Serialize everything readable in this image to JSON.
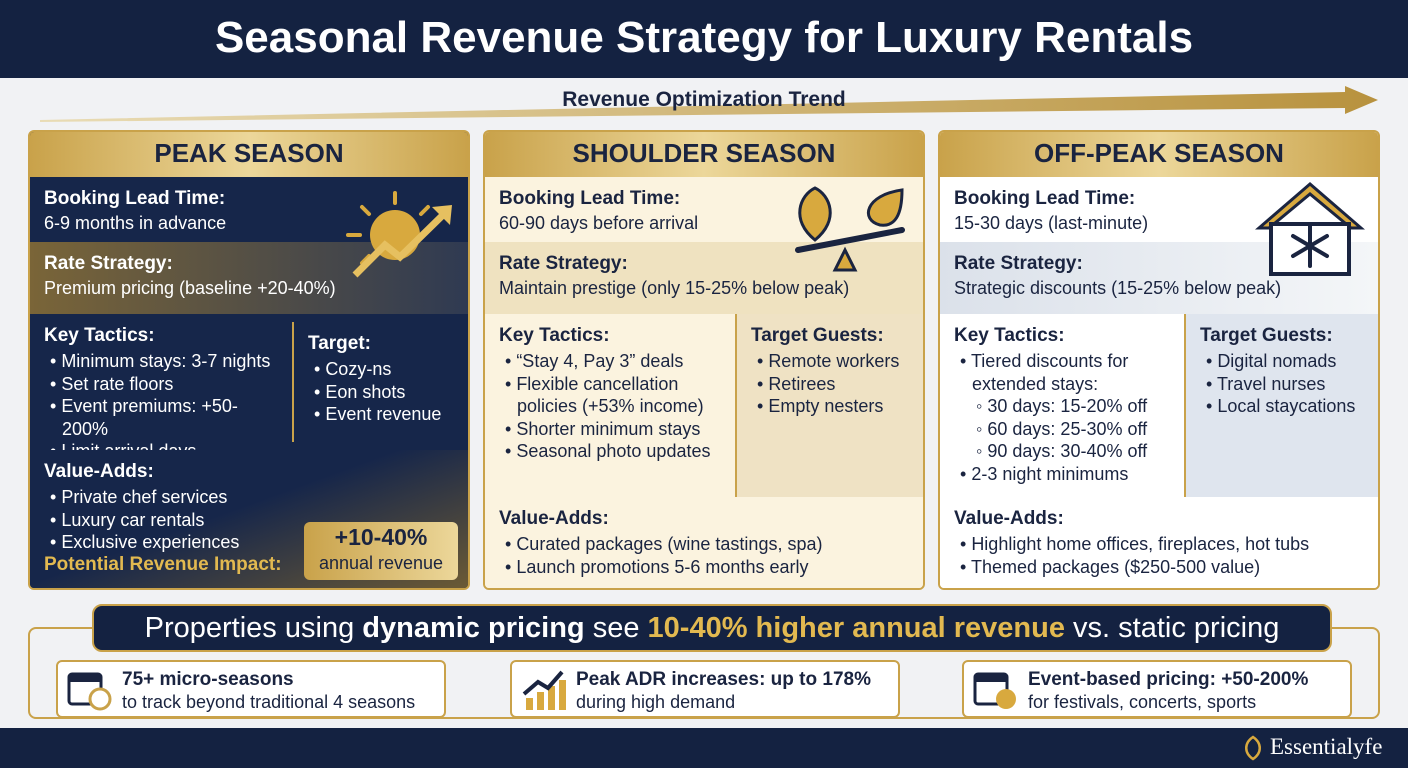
{
  "header": {
    "title": "Seasonal Revenue Strategy for Luxury Rentals"
  },
  "trend": {
    "label": "Revenue Optimization Trend"
  },
  "seasons": [
    {
      "title": "PEAK SEASON",
      "lead_time": {
        "label": "Booking Lead Time:",
        "text": "6-9 months in advance"
      },
      "rate_strategy": {
        "label": "Rate Strategy:",
        "text": "Premium pricing (baseline +20-40%)"
      },
      "key_tactics": {
        "label": "Key Tactics:",
        "items": [
          "Minimum stays: 3-7 nights",
          "Set rate floors",
          "Event premiums: +50-200%",
          "Limit arrival days"
        ]
      },
      "target": {
        "label": "Target:",
        "items": [
          "Cozy-ns",
          "Eon shots",
          "Event revenue"
        ]
      },
      "value_adds": {
        "label": "Value-Adds:",
        "items": [
          "Private chef services",
          "Luxury car rentals",
          "Exclusive experiences"
        ]
      },
      "impact": {
        "label": "Potential Revenue Impact:",
        "value": "+10-40%",
        "note": "annual revenue"
      }
    },
    {
      "title": "SHOULDER SEASON",
      "lead_time": {
        "label": "Booking Lead Time:",
        "text": "60-90 days before arrival"
      },
      "rate_strategy": {
        "label": "Rate Strategy:",
        "text": "Maintain prestige (only 15-25% below peak)"
      },
      "key_tactics": {
        "label": "Key Tactics:",
        "items": [
          "“Stay 4, Pay 3” deals",
          "Flexible cancellation policies (+53% income)",
          "Shorter minimum stays",
          "Seasonal photo updates"
        ]
      },
      "target": {
        "label": "Target Guests:",
        "items": [
          "Remote workers",
          "Retirees",
          "Empty nesters"
        ]
      },
      "value_adds": {
        "label": "Value-Adds:",
        "items": [
          "Curated packages (wine tastings, spa)",
          "Launch promotions 5-6 months early"
        ]
      }
    },
    {
      "title": "OFF-PEAK SEASON",
      "lead_time": {
        "label": "Booking Lead Time:",
        "text": "15-30 days (last-minute)"
      },
      "rate_strategy": {
        "label": "Rate Strategy:",
        "text": "Strategic discounts (15-25% below peak)"
      },
      "key_tactics": {
        "label": "Key Tactics:",
        "items": [
          "Tiered discounts for extended stays:",
          [
            "30 days: 15-20% off",
            "60 days: 25-30% off",
            "90 days: 30-40% off"
          ],
          "2-3 night minimums"
        ]
      },
      "target": {
        "label": "Target Guests:",
        "items": [
          "Digital nomads",
          "Travel nurses",
          "Local staycations"
        ]
      },
      "value_adds": {
        "label": "Value-Adds:",
        "items": [
          "Highlight home offices, fireplaces, hot tubs",
          "Themed packages ($250-500 value)"
        ]
      }
    }
  ],
  "banner": {
    "parts": [
      "Properties using",
      "dynamic pricing",
      "see",
      "10-40% higher annual revenue",
      "vs. static pricing"
    ]
  },
  "stats": [
    {
      "title": "75+ micro-seasons",
      "subtitle": "to track beyond traditional 4 seasons"
    },
    {
      "title": "Peak ADR increases: up to 178%",
      "subtitle": "during high demand"
    },
    {
      "title": "Event-based pricing: +50-200%",
      "subtitle": "for festivals, concerts, sports"
    }
  ],
  "footer": {
    "brand": "Essentialyfe"
  }
}
